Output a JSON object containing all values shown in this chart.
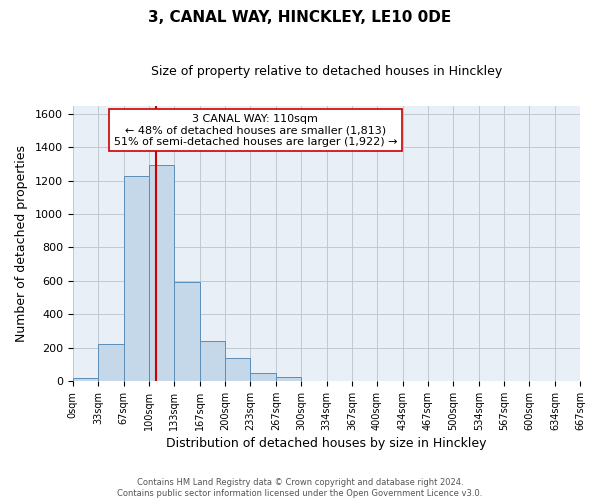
{
  "title": "3, CANAL WAY, HINCKLEY, LE10 0DE",
  "subtitle": "Size of property relative to detached houses in Hinckley",
  "xlabel": "Distribution of detached houses by size in Hinckley",
  "ylabel": "Number of detached properties",
  "footer_line1": "Contains HM Land Registry data © Crown copyright and database right 2024.",
  "footer_line2": "Contains public sector information licensed under the Open Government Licence v3.0.",
  "annotation_line1": "3 CANAL WAY: 110sqm",
  "annotation_line2": "← 48% of detached houses are smaller (1,813)",
  "annotation_line3": "51% of semi-detached houses are larger (1,922) →",
  "property_size": 110,
  "bin_edges": [
    0,
    33,
    67,
    100,
    133,
    167,
    200,
    233,
    267,
    300,
    334,
    367,
    400,
    434,
    467,
    500,
    534,
    567,
    600,
    634,
    667
  ],
  "bin_counts": [
    15,
    220,
    1225,
    1295,
    590,
    240,
    140,
    50,
    25,
    0,
    0,
    0,
    0,
    0,
    0,
    0,
    0,
    0,
    0,
    0
  ],
  "bar_color": "#c5d8ea",
  "bar_edge_color": "#5b8db8",
  "vline_color": "#cc0000",
  "vline_x": 110,
  "annotation_box_edge_color": "#cc0000",
  "annotation_box_face_color": "#ffffff",
  "ylim": [
    0,
    1650
  ],
  "yticks": [
    0,
    200,
    400,
    600,
    800,
    1000,
    1200,
    1400,
    1600
  ],
  "axes_bg_color": "#e8eff7",
  "background_color": "#ffffff",
  "grid_color": "#c0c8d0",
  "title_fontsize": 11,
  "subtitle_fontsize": 9,
  "xlabel_fontsize": 9,
  "ylabel_fontsize": 9,
  "footer_fontsize": 6,
  "annotation_fontsize": 8
}
